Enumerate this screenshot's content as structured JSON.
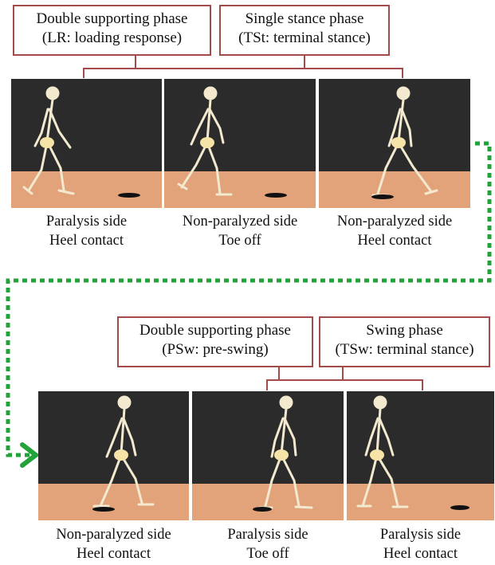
{
  "top_row": {
    "phases": [
      {
        "line1": "Double supporting phase",
        "line2": "(LR: loading response)"
      },
      {
        "line1": "Single stance phase",
        "line2": "(TSt: terminal stance)"
      }
    ],
    "frames": [
      {
        "caption_line1": "Paralysis side",
        "caption_line2": "Heel contact"
      },
      {
        "caption_line1": "Non-paralyzed side",
        "caption_line2": "Toe off"
      },
      {
        "caption_line1": "Non-paralyzed side",
        "caption_line2": "Heel contact"
      }
    ]
  },
  "bottom_row": {
    "phases": [
      {
        "line1": "Double supporting phase",
        "line2": "(PSw: pre-swing)"
      },
      {
        "line1": "Swing phase",
        "line2": "(TSw: terminal stance)"
      }
    ],
    "frames": [
      {
        "caption_line1": "Non-paralyzed side",
        "caption_line2": "Heel contact"
      },
      {
        "caption_line1": "Paralysis side",
        "caption_line2": "Toe off"
      },
      {
        "caption_line1": "Paralysis side",
        "caption_line2": "Heel contact"
      }
    ]
  },
  "colors": {
    "box_border": "#a34a4a",
    "sky": "#2b2b2b",
    "floor": "#e3a37a",
    "bone": "#f2e9cf",
    "arrow": "#22a33a"
  }
}
